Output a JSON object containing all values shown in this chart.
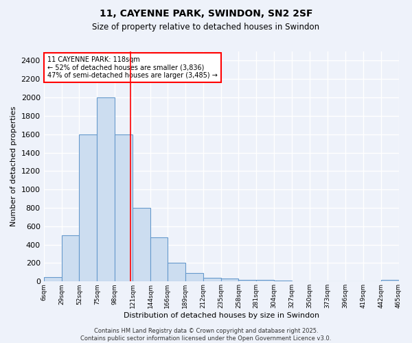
{
  "title": "11, CAYENNE PARK, SWINDON, SN2 2SF",
  "subtitle": "Size of property relative to detached houses in Swindon",
  "xlabel": "Distribution of detached houses by size in Swindon",
  "ylabel": "Number of detached properties",
  "bar_edges": [
    6,
    29,
    52,
    75,
    98,
    121,
    144,
    166,
    189,
    212,
    235,
    258,
    281,
    304,
    327,
    350,
    373,
    396,
    419,
    442,
    465
  ],
  "bar_heights": [
    50,
    500,
    1600,
    2000,
    1600,
    800,
    480,
    200,
    90,
    40,
    30,
    20,
    15,
    10,
    5,
    0,
    0,
    0,
    0,
    20
  ],
  "bar_color": "#ccddf0",
  "bar_edgecolor": "#6699cc",
  "ylim": [
    0,
    2500
  ],
  "yticks": [
    0,
    200,
    400,
    600,
    800,
    1000,
    1200,
    1400,
    1600,
    1800,
    2000,
    2200,
    2400
  ],
  "red_line_x": 118,
  "annotation_text": "11 CAYENNE PARK: 118sqm\n← 52% of detached houses are smaller (3,836)\n47% of semi-detached houses are larger (3,485) →",
  "footer": "Contains HM Land Registry data © Crown copyright and database right 2025.\nContains public sector information licensed under the Open Government Licence v3.0.",
  "background_color": "#eef2fa",
  "grid_color": "#ffffff"
}
